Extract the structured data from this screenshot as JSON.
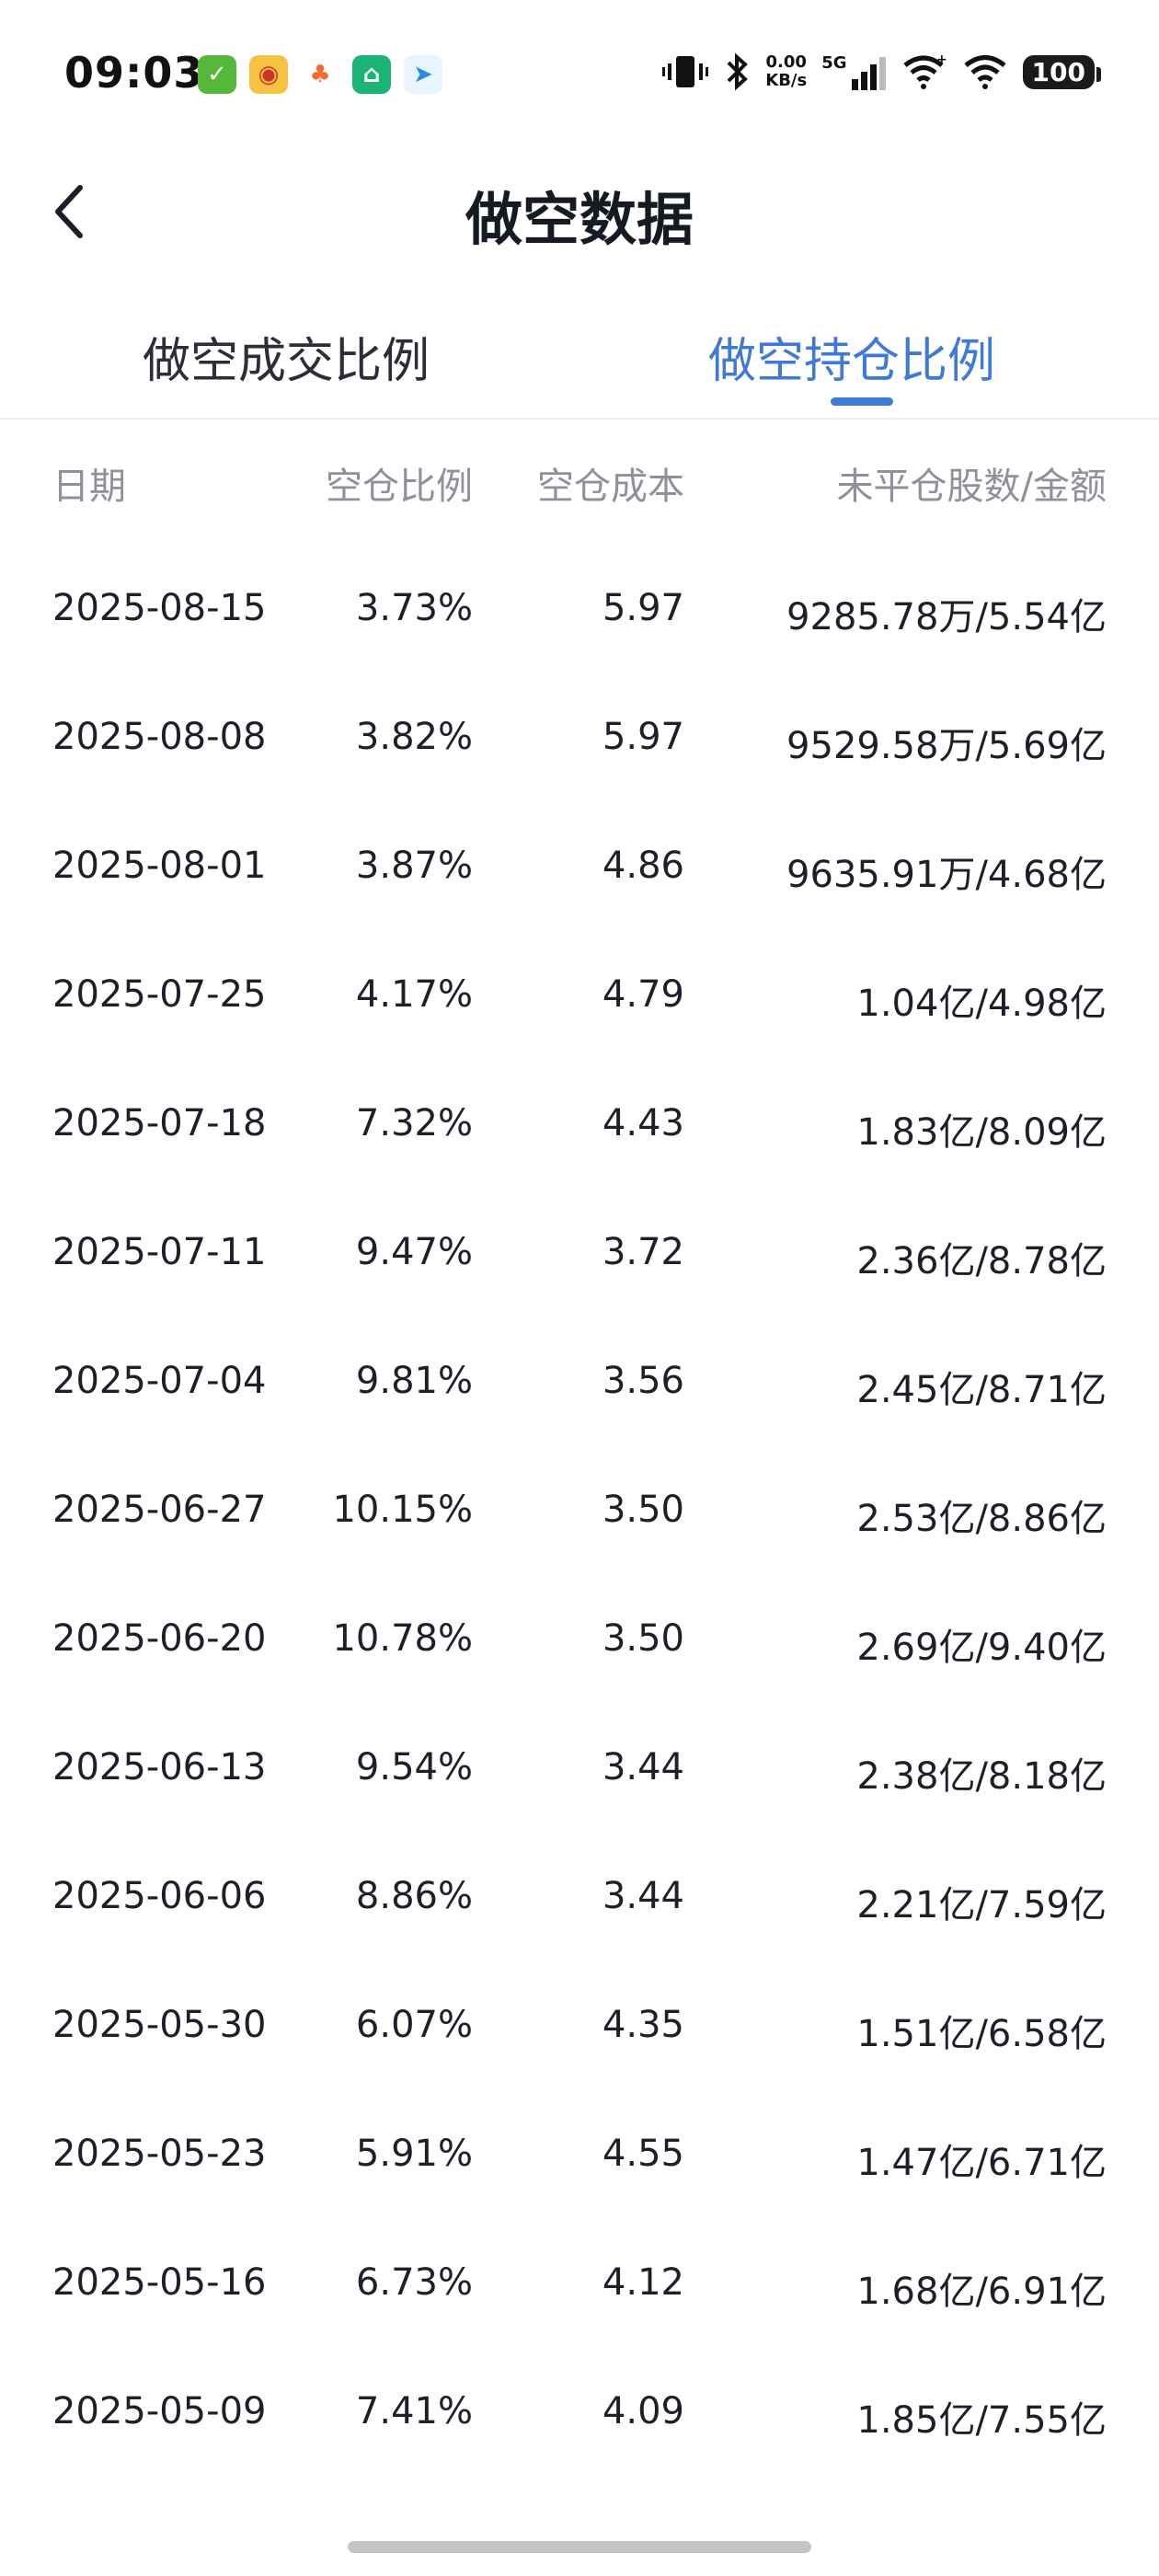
{
  "status_bar": {
    "time": "09:03",
    "app_icons": [
      "wechat-pay-icon",
      "weibo-icon",
      "taobao-icon",
      "home-app-icon",
      "send-app-icon"
    ],
    "net_speed_value": "0.00",
    "net_speed_unit": "KB/s",
    "network": "5G",
    "battery": "100"
  },
  "header": {
    "title": "做空数据"
  },
  "tabs": [
    {
      "label": "做空成交比例",
      "active": false
    },
    {
      "label": "做空持仓比例",
      "active": true
    }
  ],
  "table": {
    "columns": [
      "日期",
      "空仓比例",
      "空仓成本",
      "未平仓股数/金额"
    ],
    "rows": [
      {
        "date": "2025-08-15",
        "ratio": "3.73%",
        "cost": "5.97",
        "shares": "9285.78万/5.54亿"
      },
      {
        "date": "2025-08-08",
        "ratio": "3.82%",
        "cost": "5.97",
        "shares": "9529.58万/5.69亿"
      },
      {
        "date": "2025-08-01",
        "ratio": "3.87%",
        "cost": "4.86",
        "shares": "9635.91万/4.68亿"
      },
      {
        "date": "2025-07-25",
        "ratio": "4.17%",
        "cost": "4.79",
        "shares": "1.04亿/4.98亿"
      },
      {
        "date": "2025-07-18",
        "ratio": "7.32%",
        "cost": "4.43",
        "shares": "1.83亿/8.09亿"
      },
      {
        "date": "2025-07-11",
        "ratio": "9.47%",
        "cost": "3.72",
        "shares": "2.36亿/8.78亿"
      },
      {
        "date": "2025-07-04",
        "ratio": "9.81%",
        "cost": "3.56",
        "shares": "2.45亿/8.71亿"
      },
      {
        "date": "2025-06-27",
        "ratio": "10.15%",
        "cost": "3.50",
        "shares": "2.53亿/8.86亿"
      },
      {
        "date": "2025-06-20",
        "ratio": "10.78%",
        "cost": "3.50",
        "shares": "2.69亿/9.40亿"
      },
      {
        "date": "2025-06-13",
        "ratio": "9.54%",
        "cost": "3.44",
        "shares": "2.38亿/8.18亿"
      },
      {
        "date": "2025-06-06",
        "ratio": "8.86%",
        "cost": "3.44",
        "shares": "2.21亿/7.59亿"
      },
      {
        "date": "2025-05-30",
        "ratio": "6.07%",
        "cost": "4.35",
        "shares": "1.51亿/6.58亿"
      },
      {
        "date": "2025-05-23",
        "ratio": "5.91%",
        "cost": "4.55",
        "shares": "1.47亿/6.71亿"
      },
      {
        "date": "2025-05-16",
        "ratio": "6.73%",
        "cost": "4.12",
        "shares": "1.68亿/6.91亿"
      },
      {
        "date": "2025-05-09",
        "ratio": "7.41%",
        "cost": "4.09",
        "shares": "1.85亿/7.55亿"
      }
    ]
  },
  "colors": {
    "accent": "#3f7ad6",
    "header_text": "#8e9199",
    "body_text": "#1d2029"
  }
}
